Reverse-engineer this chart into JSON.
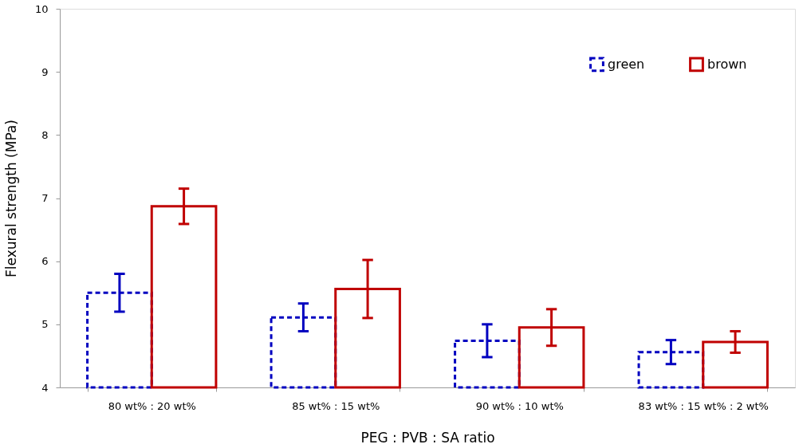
{
  "chart_data": {
    "type": "bar",
    "xlabel": "PEG : PVB : SA ratio",
    "ylabel": "Flexural strength (MPa)",
    "categories": [
      "80 wt% : 20 wt%",
      "85 wt% : 15 wt%",
      "90 wt% : 10 wt%",
      "83 wt% : 15 wt% : 2 wt%"
    ],
    "series": [
      {
        "name": "green",
        "color": "#0000c0",
        "line_style": "dashed",
        "values": [
          5.5,
          5.11,
          4.74,
          4.56
        ],
        "errors": [
          0.3,
          0.22,
          0.26,
          0.19
        ]
      },
      {
        "name": "brown",
        "color": "#c00000",
        "line_style": "solid",
        "values": [
          6.87,
          5.56,
          4.95,
          4.72
        ],
        "errors": [
          0.28,
          0.46,
          0.29,
          0.17
        ]
      }
    ],
    "ylim": [
      4,
      10
    ],
    "yticks": [
      4,
      5,
      6,
      7,
      8,
      9,
      10
    ],
    "grid": false,
    "legend": "top right"
  }
}
